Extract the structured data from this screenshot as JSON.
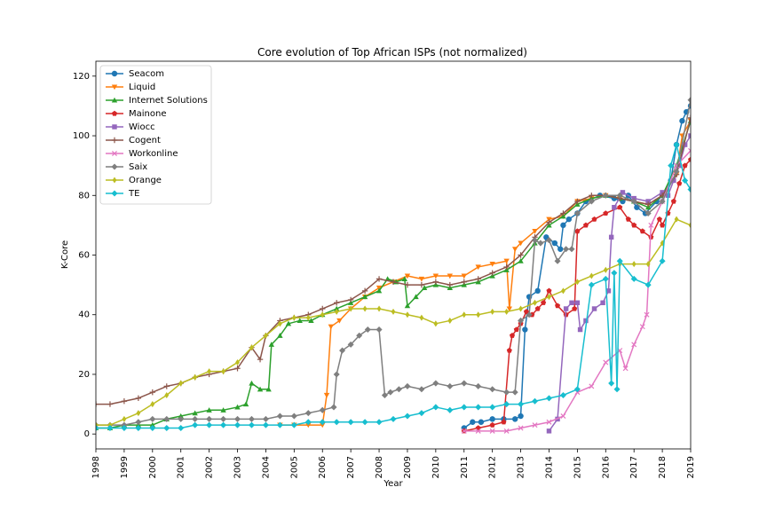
{
  "chart_data": {
    "type": "line",
    "title": "Core evolution of Top African ISPs (not normalized)",
    "xlabel": "Year",
    "ylabel": "K-Core",
    "xlim": [
      1998,
      2019
    ],
    "ylim": [
      -5,
      125
    ],
    "x_ticks": [
      "1998",
      "1999",
      "2000",
      "2001",
      "2002",
      "2003",
      "2004",
      "2005",
      "2006",
      "2007",
      "2008",
      "2009",
      "2010",
      "2011",
      "2012",
      "2013",
      "2014",
      "2015",
      "2016",
      "2017",
      "2018",
      "2019"
    ],
    "y_ticks": [
      "0",
      "20",
      "40",
      "60",
      "80",
      "100",
      "120"
    ],
    "grid": false,
    "legend_position": "upper-left",
    "series": [
      {
        "name": "Seacom",
        "color": "#1f77b4",
        "marker": "circle",
        "x": [
          2011.0,
          2011.3,
          2011.6,
          2012.0,
          2012.4,
          2012.8,
          2013.0,
          2013.15,
          2013.3,
          2013.6,
          2013.9,
          2014.2,
          2014.4,
          2014.5,
          2014.7,
          2015.0,
          2015.3,
          2015.8,
          2016.3,
          2016.6,
          2016.8,
          2017.1,
          2017.4,
          2017.8,
          2018.0,
          2018.3,
          2018.5,
          2018.7,
          2018.85,
          2019.0
        ],
        "y": [
          2,
          4,
          4,
          5,
          5,
          5,
          6,
          35,
          46,
          48,
          66,
          64,
          62,
          70,
          72,
          74,
          78,
          80,
          79,
          78,
          80,
          76,
          74,
          78,
          80,
          85,
          97,
          105,
          108,
          110
        ]
      },
      {
        "name": "Liquid",
        "color": "#ff7f0e",
        "marker": "triangle_down",
        "x": [
          2004.5,
          2005.0,
          2005.5,
          2006.0,
          2006.15,
          2006.3,
          2006.6,
          2007.0,
          2007.5,
          2008.0,
          2008.5,
          2009.0,
          2009.5,
          2010.0,
          2010.5,
          2011.0,
          2011.5,
          2012.0,
          2012.5,
          2012.6,
          2012.8,
          2013.0,
          2013.5,
          2014.0,
          2014.5,
          2015.0,
          2015.5,
          2016.0,
          2016.5,
          2017.0,
          2017.5,
          2018.0,
          2018.5,
          2018.7,
          2019.0
        ],
        "y": [
          3,
          3,
          3,
          3,
          13,
          36,
          38,
          42,
          46,
          49,
          51,
          53,
          52,
          53,
          53,
          53,
          56,
          57,
          58,
          42,
          62,
          64,
          68,
          72,
          73,
          78,
          79,
          80,
          79,
          78,
          77,
          80,
          87,
          100,
          105
        ]
      },
      {
        "name": "Internet Solutions",
        "color": "#2ca02c",
        "marker": "triangle_up",
        "x": [
          1998.0,
          1998.5,
          1999.0,
          1999.5,
          2000.0,
          2000.5,
          2001.0,
          2001.5,
          2002.0,
          2002.5,
          2003.0,
          2003.3,
          2003.5,
          2003.8,
          2004.1,
          2004.2,
          2004.5,
          2004.8,
          2005.2,
          2005.6,
          2006.0,
          2006.5,
          2007.0,
          2007.5,
          2008.0,
          2008.3,
          2008.6,
          2008.9,
          2009.0,
          2009.3,
          2009.6,
          2010.0,
          2010.5,
          2011.0,
          2011.5,
          2012.0,
          2012.5,
          2013.0,
          2013.5,
          2014.0,
          2014.5,
          2015.0,
          2015.5,
          2016.0,
          2016.5,
          2017.0,
          2017.5,
          2018.0,
          2018.5,
          2019.0
        ],
        "y": [
          2,
          2,
          3,
          3,
          3,
          5,
          6,
          7,
          8,
          8,
          9,
          10,
          17,
          15,
          15,
          30,
          33,
          37,
          38,
          38,
          40,
          42,
          44,
          46,
          48,
          52,
          51,
          52,
          43,
          46,
          49,
          50,
          49,
          50,
          51,
          53,
          55,
          58,
          64,
          70,
          73,
          77,
          79,
          80,
          79,
          78,
          76,
          80,
          90,
          105
        ]
      },
      {
        "name": "Mainone",
        "color": "#d62728",
        "marker": "pentagon",
        "x": [
          2011.0,
          2011.5,
          2012.0,
          2012.4,
          2012.6,
          2012.7,
          2012.85,
          2013.0,
          2013.2,
          2013.4,
          2013.6,
          2013.8,
          2014.0,
          2014.3,
          2014.6,
          2014.9,
          2015.0,
          2015.3,
          2015.6,
          2016.0,
          2016.5,
          2016.8,
          2017.0,
          2017.3,
          2017.6,
          2017.9,
          2018.0,
          2018.2,
          2018.4,
          2018.6,
          2018.8,
          2019.0
        ],
        "y": [
          1,
          2,
          3,
          4,
          28,
          33,
          35,
          37,
          41,
          40,
          42,
          44,
          48,
          43,
          40,
          42,
          68,
          70,
          72,
          74,
          76,
          72,
          70,
          68,
          66,
          72,
          70,
          74,
          78,
          84,
          90,
          92
        ]
      },
      {
        "name": "Wiocc",
        "color": "#9467bd",
        "marker": "square",
        "x": [
          2014.0,
          2014.3,
          2014.6,
          2014.8,
          2015.0,
          2015.1,
          2015.3,
          2015.6,
          2015.9,
          2016.1,
          2016.2,
          2016.3,
          2016.6,
          2017.0,
          2017.5,
          2018.0,
          2018.2,
          2018.4,
          2018.6,
          2018.8,
          2019.0
        ],
        "y": [
          1,
          5,
          42,
          44,
          44,
          35,
          38,
          42,
          44,
          48,
          66,
          76,
          81,
          79,
          78,
          81,
          80,
          85,
          90,
          97,
          100
        ]
      },
      {
        "name": "Cogent",
        "color": "#8c564b",
        "marker": "plus",
        "x": [
          1998.0,
          1998.5,
          1999.0,
          1999.5,
          2000.0,
          2000.5,
          2001.0,
          2001.5,
          2002.0,
          2002.5,
          2003.0,
          2003.5,
          2003.8,
          2004.0,
          2004.5,
          2005.0,
          2005.5,
          2006.0,
          2006.5,
          2007.0,
          2007.5,
          2008.0,
          2008.5,
          2009.0,
          2009.5,
          2010.0,
          2010.5,
          2011.0,
          2011.5,
          2012.0,
          2012.5,
          2013.0,
          2013.5,
          2014.0,
          2014.5,
          2015.0,
          2015.5,
          2016.0,
          2016.5,
          2017.0,
          2017.5,
          2018.0,
          2018.5,
          2019.0
        ],
        "y": [
          10,
          10,
          11,
          12,
          14,
          16,
          17,
          19,
          20,
          21,
          22,
          29,
          25,
          33,
          38,
          39,
          40,
          42,
          44,
          45,
          48,
          52,
          51,
          50,
          50,
          51,
          50,
          51,
          52,
          54,
          56,
          60,
          66,
          71,
          74,
          78,
          80,
          80,
          79,
          78,
          77,
          80,
          87,
          106
        ]
      },
      {
        "name": "Workonline",
        "color": "#e377c2",
        "marker": "x",
        "x": [
          2011.0,
          2011.5,
          2012.0,
          2012.5,
          2013.0,
          2013.5,
          2014.0,
          2014.5,
          2015.0,
          2015.5,
          2016.0,
          2016.5,
          2016.7,
          2017.0,
          2017.3,
          2017.45,
          2017.6,
          2018.0,
          2018.5,
          2019.0
        ],
        "y": [
          1,
          1,
          1,
          1,
          2,
          3,
          4,
          6,
          14,
          16,
          24,
          28,
          22,
          30,
          36,
          40,
          70,
          78,
          90,
          95
        ]
      },
      {
        "name": "Saix",
        "color": "#7f7f7f",
        "marker": "diamond",
        "x": [
          1998.0,
          1998.5,
          1999.0,
          1999.5,
          2000.0,
          2000.5,
          2001.0,
          2001.5,
          2002.0,
          2002.5,
          2003.0,
          2003.5,
          2004.0,
          2004.5,
          2005.0,
          2005.5,
          2006.0,
          2006.4,
          2006.5,
          2006.7,
          2007.0,
          2007.3,
          2007.6,
          2008.0,
          2008.2,
          2008.4,
          2008.7,
          2009.0,
          2009.5,
          2010.0,
          2010.5,
          2011.0,
          2011.5,
          2012.0,
          2012.5,
          2012.8,
          2013.0,
          2013.3,
          2013.5,
          2013.7,
          2014.0,
          2014.3,
          2014.6,
          2014.8,
          2015.0,
          2015.5,
          2016.0,
          2016.5,
          2017.0,
          2017.5,
          2018.0,
          2018.5,
          2019.0
        ],
        "y": [
          3,
          3,
          3,
          4,
          5,
          5,
          5,
          5,
          5,
          5,
          5,
          5,
          5,
          6,
          6,
          7,
          8,
          9,
          20,
          28,
          30,
          33,
          35,
          35,
          13,
          14,
          15,
          16,
          15,
          17,
          16,
          17,
          16,
          15,
          14,
          14,
          38,
          40,
          65,
          64,
          65,
          58,
          62,
          62,
          74,
          78,
          80,
          80,
          78,
          74,
          78,
          88,
          112
        ]
      },
      {
        "name": "Orange",
        "color": "#bcbd22",
        "marker": "diamond_thin",
        "x": [
          1998.0,
          1998.5,
          1999.0,
          1999.5,
          2000.0,
          2000.5,
          2001.0,
          2001.5,
          2002.0,
          2002.5,
          2003.0,
          2003.5,
          2004.0,
          2004.5,
          2005.0,
          2005.5,
          2006.0,
          2006.5,
          2007.0,
          2007.5,
          2008.0,
          2008.5,
          2009.0,
          2009.5,
          2010.0,
          2010.5,
          2011.0,
          2011.5,
          2012.0,
          2012.5,
          2013.0,
          2013.5,
          2014.0,
          2014.5,
          2015.0,
          2015.5,
          2016.0,
          2016.5,
          2017.0,
          2017.5,
          2018.0,
          2018.5,
          2019.0
        ],
        "y": [
          3,
          3,
          5,
          7,
          10,
          13,
          17,
          19,
          21,
          21,
          24,
          29,
          33,
          37,
          39,
          39,
          40,
          41,
          42,
          42,
          42,
          41,
          40,
          39,
          37,
          38,
          40,
          40,
          41,
          41,
          42,
          44,
          46,
          48,
          51,
          53,
          55,
          57,
          57,
          57,
          64,
          72,
          70
        ]
      },
      {
        "name": "TE",
        "color": "#17becf",
        "marker": "diamond",
        "x": [
          1998.0,
          1998.5,
          1999.0,
          1999.5,
          2000.0,
          2000.5,
          2001.0,
          2001.5,
          2002.0,
          2002.5,
          2003.0,
          2003.5,
          2004.0,
          2004.5,
          2005.0,
          2005.5,
          2006.0,
          2006.5,
          2007.0,
          2007.5,
          2008.0,
          2008.5,
          2009.0,
          2009.5,
          2010.0,
          2010.5,
          2011.0,
          2011.5,
          2012.0,
          2012.5,
          2013.0,
          2013.5,
          2014.0,
          2014.5,
          2015.0,
          2015.5,
          2016.0,
          2016.2,
          2016.3,
          2016.4,
          2016.5,
          2017.0,
          2017.5,
          2018.0,
          2018.3,
          2018.5,
          2018.8,
          2019.0
        ],
        "y": [
          2,
          2,
          2,
          2,
          2,
          2,
          2,
          3,
          3,
          3,
          3,
          3,
          3,
          3,
          3,
          4,
          4,
          4,
          4,
          4,
          4,
          5,
          6,
          7,
          9,
          8,
          9,
          9,
          9,
          10,
          10,
          11,
          12,
          13,
          15,
          50,
          52,
          17,
          54,
          15,
          58,
          52,
          50,
          58,
          90,
          97,
          85,
          82
        ]
      }
    ]
  }
}
